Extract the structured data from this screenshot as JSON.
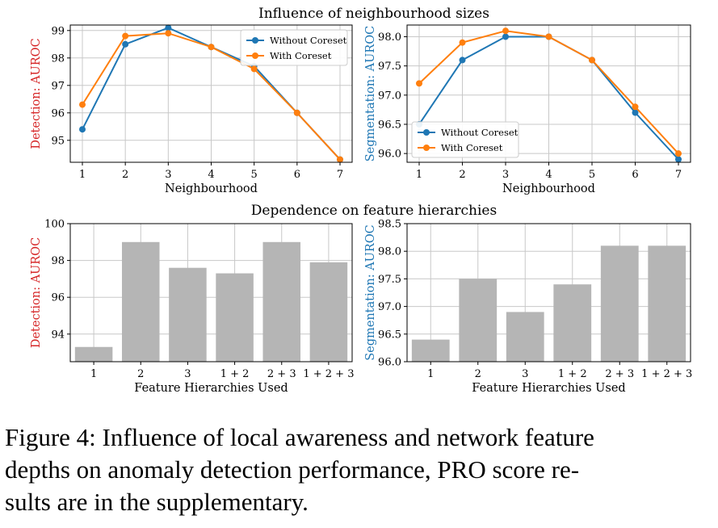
{
  "figure": {
    "row_titles": [
      "Influence of neighbourhood sizes",
      "Dependence on feature hierarchies"
    ],
    "colors": {
      "without_coreset": "#1f77b4",
      "with_coreset": "#ff7f0e",
      "bar": "#b5b5b5",
      "detection_label": "#d62728",
      "segmentation_label": "#1f77b4",
      "grid": "#c8c8c8"
    }
  },
  "chart_data": [
    {
      "type": "line",
      "title": "Influence of neighbourhood sizes",
      "xlabel": "Neighbourhood",
      "ylabel_prefix": "Detection: ",
      "ylabel_metric": "AUROC",
      "x": [
        1,
        2,
        3,
        4,
        5,
        6,
        7
      ],
      "ylim": [
        94.2,
        99.2
      ],
      "yticks": [
        95,
        96,
        97,
        98,
        99
      ],
      "ytick_labels": [
        "95",
        "96",
        "97",
        "98",
        "99"
      ],
      "legend_position": "top-right",
      "grid": true,
      "series": [
        {
          "name": "Without Coreset",
          "values": [
            95.4,
            98.5,
            99.1,
            98.4,
            97.7,
            96.0,
            94.3
          ]
        },
        {
          "name": "With Coreset",
          "values": [
            96.3,
            98.8,
            98.9,
            98.4,
            97.6,
            96.0,
            94.3
          ]
        }
      ]
    },
    {
      "type": "line",
      "title": "",
      "xlabel": "Neighbourhood",
      "ylabel_prefix": "Segmentation: ",
      "ylabel_metric": "AUROC",
      "x": [
        1,
        2,
        3,
        4,
        5,
        6,
        7
      ],
      "ylim": [
        95.85,
        98.2
      ],
      "yticks": [
        96.0,
        96.5,
        97.0,
        97.5,
        98.0
      ],
      "ytick_labels": [
        "96.0",
        "96.5",
        "97.0",
        "97.5",
        "98.0"
      ],
      "legend_position": "bottom-left",
      "grid": true,
      "series": [
        {
          "name": "Without Coreset",
          "values": [
            96.5,
            97.6,
            98.0,
            98.0,
            97.6,
            96.7,
            95.9
          ]
        },
        {
          "name": "With Coreset",
          "values": [
            97.2,
            97.9,
            98.1,
            98.0,
            97.6,
            96.8,
            96.0
          ]
        }
      ]
    },
    {
      "type": "bar",
      "title": "Dependence on feature hierarchies",
      "xlabel": "Feature Hierarchies Used",
      "ylabel_prefix": "Detection: ",
      "ylabel_metric": "AUROC",
      "categories": [
        "1",
        "2",
        "3",
        "1 + 2",
        "2 + 3",
        "1 + 2 + 3"
      ],
      "values": [
        93.3,
        99.0,
        97.6,
        97.3,
        99.0,
        97.9
      ],
      "ylim": [
        92.5,
        100
      ],
      "yticks": [
        94,
        96,
        98,
        100
      ],
      "ytick_labels": [
        "94",
        "96",
        "98",
        "100"
      ],
      "grid": true
    },
    {
      "type": "bar",
      "title": "",
      "xlabel": "Feature Hierarchies Used",
      "ylabel_prefix": "Segmentation: ",
      "ylabel_metric": "AUROC",
      "categories": [
        "1",
        "2",
        "3",
        "1 + 2",
        "2 + 3",
        "1 + 2 + 3"
      ],
      "values": [
        96.4,
        97.5,
        96.9,
        97.4,
        98.1,
        98.1
      ],
      "ylim": [
        96.0,
        98.5
      ],
      "yticks": [
        96.0,
        96.5,
        97.0,
        97.5,
        98.0,
        98.5
      ],
      "ytick_labels": [
        "96.0",
        "96.5",
        "97.0",
        "97.5",
        "98.0",
        "98.5"
      ],
      "grid": true
    }
  ],
  "caption": {
    "lines": [
      "Figure 4: Influence of local awareness and network feature",
      "depths on anomaly detection performance, PRO score re-",
      "sults are in the supplementary."
    ]
  }
}
